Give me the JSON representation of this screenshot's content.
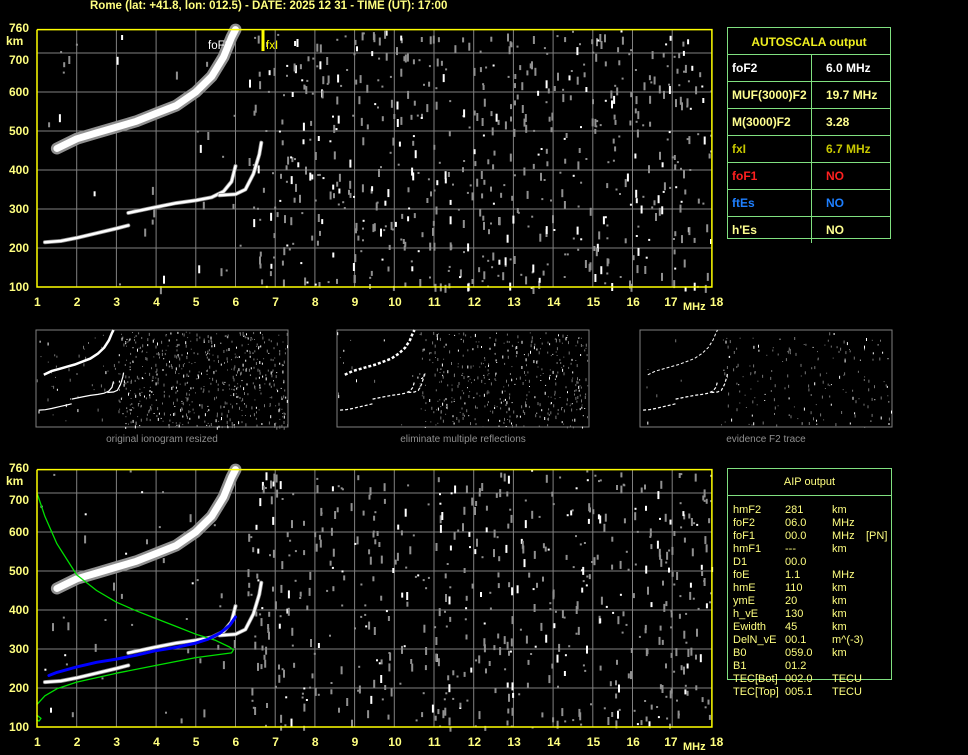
{
  "header": {
    "title": "Rome (lat: +41.8, lon: 012.5) - DATE: 2025 12 31 - TIME (UT): 17:00"
  },
  "colors": {
    "axis": "#ffff80",
    "grid": "#808080",
    "trace": "#ffffff",
    "profile": "#00e000",
    "fit": "#0000ff",
    "table_border": "#80e080",
    "foF1": "#ff2020",
    "ftEs": "#1e7fff",
    "fxI": "#c8c800"
  },
  "chart_data": {
    "type": "ionogram",
    "xlabel": "MHz",
    "ylabel": "km",
    "xlim": [
      1,
      18
    ],
    "ylim": [
      100,
      760
    ],
    "xticks": [
      "1",
      "2",
      "3",
      "4",
      "5",
      "6",
      "7",
      "8",
      "9",
      "10",
      "11",
      "12",
      "13",
      "14",
      "15",
      "16",
      "17",
      "18"
    ],
    "yticks": [
      "100",
      "200",
      "300",
      "400",
      "500",
      "600",
      "700",
      "760"
    ],
    "grid": true,
    "annotations": {
      "foF2_label": "foF2",
      "fxI_label": "fxI",
      "fxI_freq": 6.7
    },
    "traces": {
      "o_trace": [
        [
          1.2,
          215
        ],
        [
          1.6,
          218
        ],
        [
          2.0,
          226
        ],
        [
          2.5,
          238
        ],
        [
          3.0,
          250
        ],
        [
          3.3,
          258
        ]
      ],
      "f2_trace": [
        [
          3.3,
          290
        ],
        [
          4.0,
          305
        ],
        [
          4.5,
          315
        ],
        [
          5.0,
          322
        ],
        [
          5.4,
          330
        ],
        [
          5.7,
          345
        ],
        [
          5.9,
          370
        ],
        [
          6.0,
          410
        ]
      ],
      "x_trace": [
        [
          5.6,
          335
        ],
        [
          6.0,
          338
        ],
        [
          6.25,
          350
        ],
        [
          6.45,
          390
        ],
        [
          6.6,
          440
        ],
        [
          6.65,
          470
        ]
      ],
      "second_hop": [
        [
          1.5,
          455
        ],
        [
          2.0,
          480
        ],
        [
          2.5,
          495
        ],
        [
          3.0,
          510
        ],
        [
          3.5,
          525
        ],
        [
          4.0,
          545
        ],
        [
          4.5,
          565
        ],
        [
          5.0,
          600
        ],
        [
          5.4,
          640
        ],
        [
          5.7,
          690
        ],
        [
          5.9,
          740
        ],
        [
          6.0,
          760
        ]
      ]
    },
    "profile_curve": [
      [
        1.0,
        700
      ],
      [
        1.2,
        640
      ],
      [
        1.5,
        570
      ],
      [
        2.0,
        490
      ],
      [
        2.5,
        450
      ],
      [
        3.0,
        420
      ],
      [
        3.5,
        398
      ],
      [
        4.0,
        378
      ],
      [
        4.5,
        358
      ],
      [
        5.0,
        338
      ],
      [
        5.5,
        322
      ],
      [
        5.85,
        305
      ],
      [
        5.95,
        298
      ],
      [
        5.9,
        290
      ],
      [
        5.0,
        278
      ],
      [
        4.0,
        258
      ],
      [
        3.0,
        238
      ],
      [
        2.0,
        215
      ],
      [
        1.5,
        198
      ],
      [
        1.2,
        180
      ],
      [
        1.0,
        158
      ]
    ],
    "profile_e": [
      [
        1.0,
        130
      ],
      [
        1.1,
        122
      ],
      [
        1.05,
        115
      ],
      [
        1.0,
        118
      ]
    ],
    "fit_curve": [
      [
        1.3,
        232
      ],
      [
        1.5,
        240
      ],
      [
        2.0,
        254
      ],
      [
        2.5,
        266
      ],
      [
        3.0,
        274
      ],
      [
        3.5,
        284
      ],
      [
        4.0,
        296
      ],
      [
        4.5,
        304
      ],
      [
        5.0,
        315
      ],
      [
        5.3,
        325
      ],
      [
        5.6,
        340
      ],
      [
        5.85,
        360
      ],
      [
        6.0,
        382
      ]
    ]
  },
  "autoscala": {
    "title": "AUTOSCALA output",
    "rows": [
      {
        "label": "foF2",
        "value": "6.0 MHz",
        "color": "#ffffff"
      },
      {
        "label": "MUF(3000)F2",
        "value": "19.7 MHz",
        "color": "#ffff90"
      },
      {
        "label": "M(3000)F2",
        "value": "3.28",
        "color": "#ffff90"
      },
      {
        "label": "fxI",
        "value": "6.7 MHz",
        "color": "#c8c800"
      },
      {
        "label": "foF1",
        "value": "NO",
        "color": "#ff2020"
      },
      {
        "label": "ftEs",
        "value": "NO",
        "color": "#1e7fff"
      },
      {
        "label": "h'Es",
        "value": "NO",
        "color": "#ffff90"
      }
    ]
  },
  "thumbnails": [
    {
      "caption": "original ionogram resized"
    },
    {
      "caption": "eliminate multiple reflections"
    },
    {
      "caption": "evidence F2 trace"
    }
  ],
  "aip": {
    "title": "AIP output",
    "rows": [
      {
        "label": "hmF2",
        "value": "281",
        "unit": "km",
        "extra": ""
      },
      {
        "label": "foF2",
        "value": "06.0",
        "unit": "MHz",
        "extra": ""
      },
      {
        "label": "foF1",
        "value": "00.0",
        "unit": "MHz",
        "extra": "[PN]"
      },
      {
        "label": "hmF1",
        "value": "---",
        "unit": "km",
        "extra": ""
      },
      {
        "label": "D1",
        "value": "00.0",
        "unit": "",
        "extra": ""
      },
      {
        "label": "foE",
        "value": "1.1",
        "unit": "MHz",
        "extra": ""
      },
      {
        "label": "hmE",
        "value": "110",
        "unit": "km",
        "extra": ""
      },
      {
        "label": "ymE",
        "value": "20",
        "unit": "km",
        "extra": ""
      },
      {
        "label": "h_vE",
        "value": "130",
        "unit": "km",
        "extra": ""
      },
      {
        "label": "Ewidth",
        "value": "45",
        "unit": "km",
        "extra": ""
      },
      {
        "label": "DelN_vE",
        "value": "00.1",
        "unit": "m^(-3)",
        "extra": ""
      },
      {
        "label": "B0",
        "value": "059.0",
        "unit": "km",
        "extra": ""
      },
      {
        "label": "B1",
        "value": "01.2",
        "unit": "",
        "extra": ""
      },
      {
        "label": "TEC[Bot]",
        "value": "002.0",
        "unit": "TECU",
        "extra": ""
      },
      {
        "label": "TEC[Top]",
        "value": "005.1",
        "unit": "TECU",
        "extra": ""
      }
    ]
  }
}
